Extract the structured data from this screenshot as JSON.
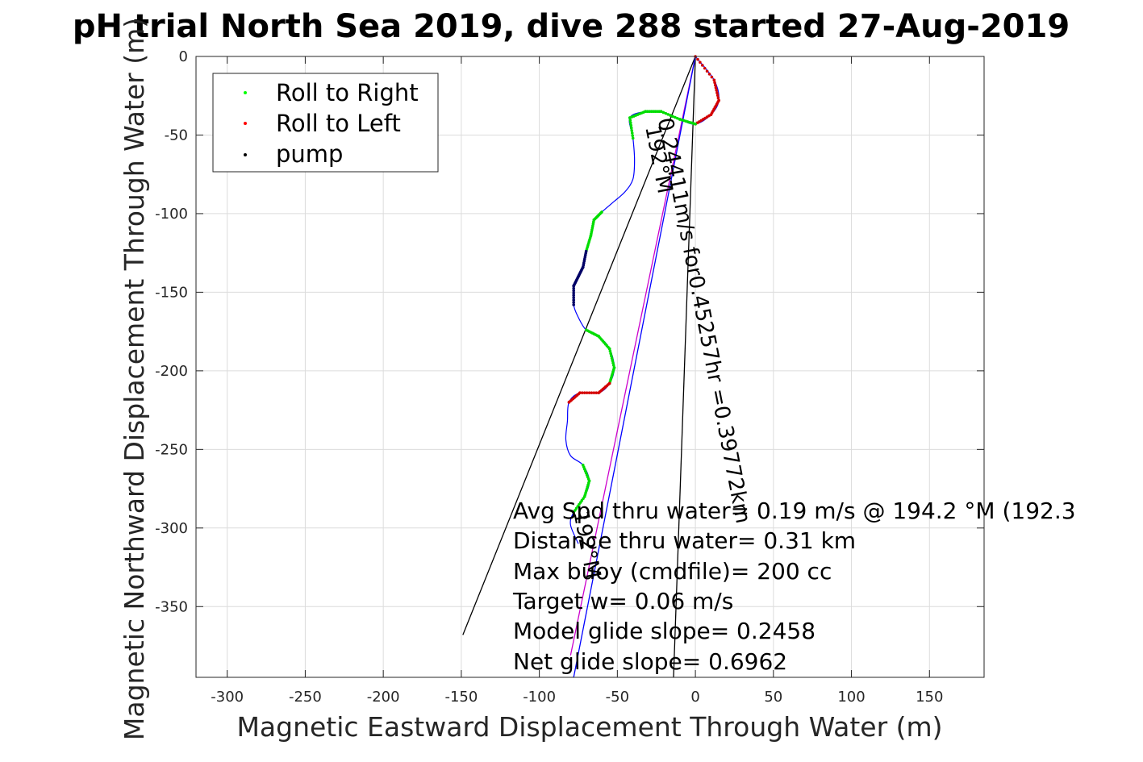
{
  "chart_data": {
    "type": "scatter",
    "title": "pH trial North Sea 2019, dive 288 started 27-Aug-2019",
    "xlabel": "Magnetic Eastward Displacement Through Water (m)",
    "ylabel": "Magnetic Northward Displacement Through Water (m)",
    "xlim": [
      -320,
      185
    ],
    "ylim": [
      -395,
      0
    ],
    "xticks": [
      -300,
      -250,
      -200,
      -150,
      -100,
      -50,
      0,
      50,
      100,
      150
    ],
    "yticks": [
      0,
      -50,
      -100,
      -150,
      -200,
      -250,
      -300,
      -350
    ],
    "grid": true,
    "legend": {
      "placement": "top-left",
      "entries": [
        {
          "label": "Roll to Right",
          "color": "#00ff00"
        },
        {
          "label": "Roll to Left",
          "color": "#ff0000"
        },
        {
          "label": "pump",
          "color": "#000000"
        }
      ]
    },
    "track": [
      [
        0,
        0
      ],
      [
        12,
        -15
      ],
      [
        15,
        -28
      ],
      [
        10,
        -37
      ],
      [
        0,
        -43
      ],
      [
        -10,
        -40
      ],
      [
        -22,
        -35
      ],
      [
        -32,
        -35
      ],
      [
        -42,
        -39
      ],
      [
        -40,
        -52
      ],
      [
        -39,
        -66
      ],
      [
        -40,
        -78
      ],
      [
        -45,
        -86
      ],
      [
        -53,
        -93
      ],
      [
        -60,
        -99
      ],
      [
        -65,
        -104
      ],
      [
        -67,
        -114
      ],
      [
        -70,
        -124
      ],
      [
        -72,
        -134
      ],
      [
        -75,
        -140
      ],
      [
        -78,
        -146
      ],
      [
        -78,
        -158
      ],
      [
        -75,
        -166
      ],
      [
        -70,
        -174
      ],
      [
        -62,
        -178
      ],
      [
        -55,
        -186
      ],
      [
        -52,
        -198
      ],
      [
        -55,
        -208
      ],
      [
        -62,
        -214
      ],
      [
        -74,
        -214
      ],
      [
        -81,
        -220
      ],
      [
        -82,
        -232
      ],
      [
        -83,
        -244
      ],
      [
        -80,
        -254
      ],
      [
        -72,
        -260
      ],
      [
        -68,
        -270
      ],
      [
        -71,
        -280
      ],
      [
        -78,
        -290
      ],
      [
        -80,
        -298
      ],
      [
        -75,
        -310
      ]
    ],
    "segments": [
      {
        "name": "Roll to Left",
        "color": "#d40000",
        "from": 0,
        "to": 4
      },
      {
        "name": "Roll to Right",
        "color": "#00dd00",
        "from": 4,
        "to": 9
      },
      {
        "name": "Roll to Right",
        "color": "#00dd00",
        "from": 14,
        "to": 17
      },
      {
        "name": "pump",
        "color": "#000066",
        "from": 17,
        "to": 21
      },
      {
        "name": "Roll to Right",
        "color": "#00dd00",
        "from": 23,
        "to": 27
      },
      {
        "name": "Roll to Left",
        "color": "#d40000",
        "from": 27,
        "to": 30
      },
      {
        "name": "Roll to Right",
        "color": "#00dd00",
        "from": 34,
        "to": 37
      }
    ],
    "lines": [
      {
        "color": "#000000",
        "points": [
          [
            0,
            0
          ],
          [
            -149,
            -368
          ]
        ]
      },
      {
        "color": "#000000",
        "points": [
          [
            0,
            0
          ],
          [
            -14,
            -395
          ]
        ]
      },
      {
        "color": "#cc00cc",
        "points": [
          [
            0,
            0
          ],
          [
            -80,
            -381
          ]
        ]
      },
      {
        "color": "#0000ff",
        "points": [
          [
            0,
            0
          ],
          [
            -78,
            -395
          ]
        ]
      }
    ],
    "velocity_labels": [
      {
        "text": "0.24411m/s for0.45257hr =0.39772km",
        "at": [
          -24,
          -40
        ],
        "angle": 79
      },
      {
        "text": "192°M",
        "at": [
          -32,
          -45
        ],
        "angle": 79
      },
      {
        "text": "192°M",
        "at": [
          -78,
          -290
        ],
        "angle": 79
      }
    ],
    "annotations": [
      "Avg Spd thru water=  0.19 m/s @ 194.2 °M (192.3",
      "Distance thru water=  0.31 km",
      "Max buoy (cmdfile)= 200 cc",
      "Target w= 0.06 m/s",
      "Model glide slope= 0.2458",
      "Net glide slope= 0.6962"
    ]
  }
}
